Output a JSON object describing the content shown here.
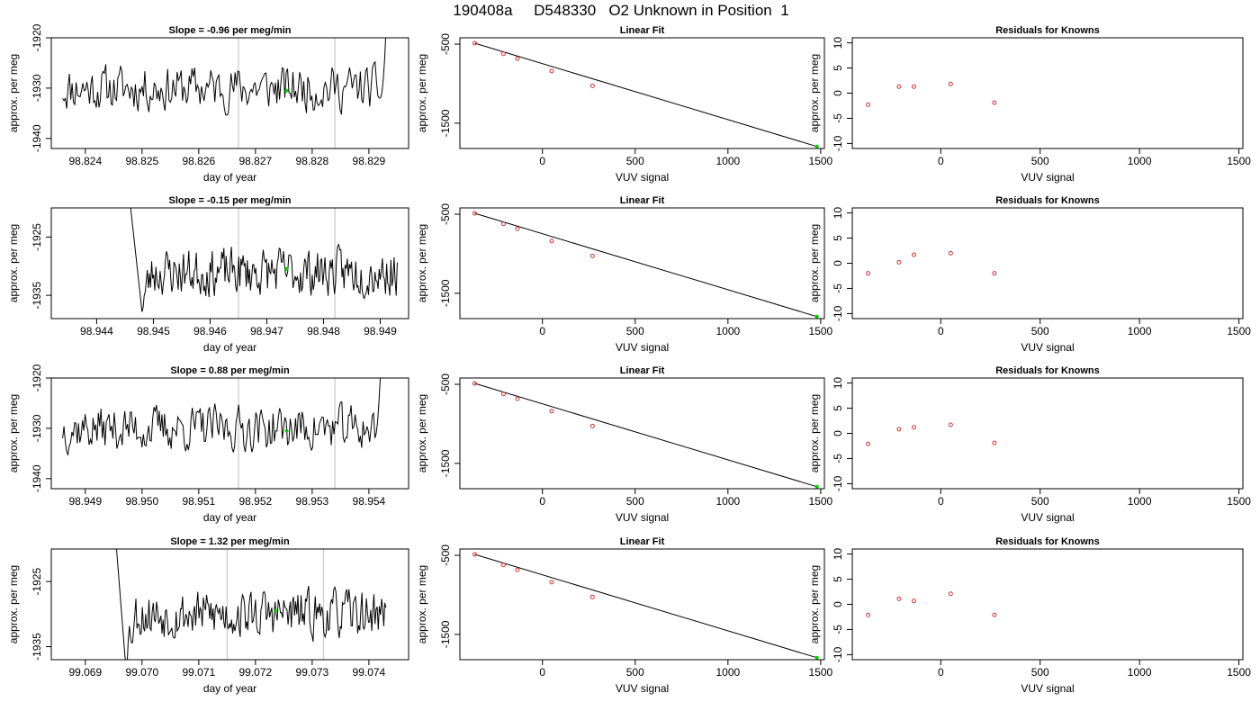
{
  "figure": {
    "title": "190408a     D548330   O2 Unknown in Position  1"
  },
  "rows": [
    {
      "timeseries": {
        "title": "Slope =  -0.96  per meg/min",
        "xlabel": "day of year",
        "ylabel": "approx. per meg",
        "xlim": [
          98.8234,
          98.8297
        ],
        "ylim": [
          -1942,
          -1920
        ],
        "xticks": [
          "98.824",
          "98.825",
          "98.826",
          "98.827",
          "98.828",
          "98.829"
        ],
        "xtick_values": [
          98.824,
          98.825,
          98.826,
          98.827,
          98.828,
          98.829
        ],
        "yticks": [
          "-1940",
          "-1930",
          "-1920"
        ],
        "ytick_values": [
          -1940,
          -1930,
          -1920
        ],
        "vlines": [
          98.8267,
          98.8284
        ],
        "marker": {
          "x": 98.82755,
          "y": -1930.5
        },
        "series": {
          "x_start": 98.8236,
          "x_end": 98.8293,
          "baseline": -1930,
          "spread": 2.2,
          "seed": 11,
          "head": null,
          "tail": {
            "from": 98.8292,
            "to": -1917
          }
        }
      },
      "linfit": {
        "title": "Linear Fit",
        "xlabel": "VUV signal",
        "ylabel": "approx. per meg",
        "xlim": [
          -445,
          1520
        ],
        "ylim": [
          -1820,
          -420
        ],
        "xticks": [
          "0",
          "500",
          "1000",
          "1500"
        ],
        "xtick_values": [
          0,
          500,
          1000,
          1500
        ],
        "yticks": [
          "-1500",
          "-500"
        ],
        "ytick_values": [
          -1500,
          -500
        ],
        "knowns": [
          {
            "x": -365,
            "y": -488
          },
          {
            "x": -210,
            "y": -622
          },
          {
            "x": -135,
            "y": -683
          },
          {
            "x": 50,
            "y": -840
          },
          {
            "x": 270,
            "y": -1027
          }
        ],
        "unknown": {
          "x": 1480,
          "y": -1795
        },
        "fit_line": {
          "x": [
            -365,
            1480
          ],
          "y": [
            -488,
            -1795
          ]
        }
      },
      "residuals": {
        "title": "Residuals for Knowns",
        "xlabel": "VUV signal",
        "ylabel": "approx. per meg",
        "xlim": [
          -445,
          1520
        ],
        "ylim": [
          -11,
          11
        ],
        "xticks": [
          "0",
          "500",
          "1000",
          "1500"
        ],
        "xtick_values": [
          0,
          500,
          1000,
          1500
        ],
        "yticks": [
          "-10",
          "-5",
          "0",
          "5",
          "10"
        ],
        "ytick_values": [
          -10,
          -5,
          0,
          5,
          10
        ],
        "points": [
          {
            "x": -365,
            "y": -2.3
          },
          {
            "x": -210,
            "y": 1.3
          },
          {
            "x": -135,
            "y": 1.3
          },
          {
            "x": 50,
            "y": 1.8
          },
          {
            "x": 270,
            "y": -1.9
          }
        ]
      }
    },
    {
      "timeseries": {
        "title": "Slope =  -0.15  per meg/min",
        "xlabel": "day of year",
        "ylabel": "approx. per meg",
        "xlim": [
          98.9432,
          98.9495
        ],
        "ylim": [
          -1939,
          -1920
        ],
        "xticks": [
          "98.944",
          "98.945",
          "98.946",
          "98.947",
          "98.948",
          "98.949"
        ],
        "xtick_values": [
          98.944,
          98.945,
          98.946,
          98.947,
          98.948,
          98.949
        ],
        "yticks": [
          "-1935",
          "-1925"
        ],
        "ytick_values": [
          -1935,
          -1925
        ],
        "vlines": [
          98.9465,
          98.9482
        ],
        "marker": {
          "x": 98.94735,
          "y": -1930.5
        },
        "series": {
          "x_start": 98.9448,
          "x_end": 98.9493,
          "baseline": -1931,
          "spread": 2.0,
          "seed": 23,
          "head": {
            "x": 98.9446,
            "y": -1920
          },
          "tail": null
        }
      },
      "linfit": {
        "title": "Linear Fit",
        "xlabel": "VUV signal",
        "ylabel": "approx. per meg",
        "xlim": [
          -445,
          1520
        ],
        "ylim": [
          -1820,
          -420
        ],
        "xticks": [
          "0",
          "500",
          "1000",
          "1500"
        ],
        "xtick_values": [
          0,
          500,
          1000,
          1500
        ],
        "yticks": [
          "-1500",
          "-500"
        ],
        "ytick_values": [
          -1500,
          -500
        ],
        "knowns": [
          {
            "x": -365,
            "y": -488
          },
          {
            "x": -210,
            "y": -622
          },
          {
            "x": -135,
            "y": -683
          },
          {
            "x": 50,
            "y": -840
          },
          {
            "x": 270,
            "y": -1027
          }
        ],
        "unknown": {
          "x": 1480,
          "y": -1795
        },
        "fit_line": {
          "x": [
            -365,
            1480
          ],
          "y": [
            -488,
            -1795
          ]
        }
      },
      "residuals": {
        "title": "Residuals for Knowns",
        "xlabel": "VUV signal",
        "ylabel": "approx. per meg",
        "xlim": [
          -445,
          1520
        ],
        "ylim": [
          -11,
          11
        ],
        "xticks": [
          "0",
          "500",
          "1000",
          "1500"
        ],
        "xtick_values": [
          0,
          500,
          1000,
          1500
        ],
        "yticks": [
          "-10",
          "-5",
          "0",
          "5",
          "10"
        ],
        "ytick_values": [
          -10,
          -5,
          0,
          5,
          10
        ],
        "points": [
          {
            "x": -365,
            "y": -2.0
          },
          {
            "x": -210,
            "y": 0.2
          },
          {
            "x": -135,
            "y": 1.7
          },
          {
            "x": 50,
            "y": 2.0
          },
          {
            "x": 270,
            "y": -2.0
          }
        ]
      }
    },
    {
      "timeseries": {
        "title": "Slope =  0.88  per meg/min",
        "xlabel": "day of year",
        "ylabel": "approx. per meg",
        "xlim": [
          98.9484,
          98.9547
        ],
        "ylim": [
          -1942,
          -1920
        ],
        "xticks": [
          "98.949",
          "98.950",
          "98.951",
          "98.952",
          "98.953",
          "98.954"
        ],
        "xtick_values": [
          98.949,
          98.95,
          98.951,
          98.952,
          98.953,
          98.954
        ],
        "yticks": [
          "-1940",
          "-1930",
          "-1920"
        ],
        "ytick_values": [
          -1940,
          -1930,
          -1920
        ],
        "vlines": [
          98.9517,
          98.9534
        ],
        "marker": {
          "x": 98.95255,
          "y": -1930.5
        },
        "series": {
          "x_start": 98.9486,
          "x_end": 98.9542,
          "baseline": -1930,
          "spread": 2.2,
          "seed": 37,
          "head": null,
          "tail": {
            "from": 98.9541,
            "to": -1918
          }
        }
      },
      "linfit": {
        "title": "Linear Fit",
        "xlabel": "VUV signal",
        "ylabel": "approx. per meg",
        "xlim": [
          -445,
          1520
        ],
        "ylim": [
          -1820,
          -420
        ],
        "xticks": [
          "0",
          "500",
          "1000",
          "1500"
        ],
        "xtick_values": [
          0,
          500,
          1000,
          1500
        ],
        "yticks": [
          "-1500",
          "-500"
        ],
        "ytick_values": [
          -1500,
          -500
        ],
        "knowns": [
          {
            "x": -365,
            "y": -488
          },
          {
            "x": -210,
            "y": -622
          },
          {
            "x": -135,
            "y": -683
          },
          {
            "x": 50,
            "y": -840
          },
          {
            "x": 270,
            "y": -1027
          }
        ],
        "unknown": {
          "x": 1480,
          "y": -1795
        },
        "fit_line": {
          "x": [
            -365,
            1480
          ],
          "y": [
            -488,
            -1795
          ]
        }
      },
      "residuals": {
        "title": "Residuals for Knowns",
        "xlabel": "VUV signal",
        "ylabel": "approx. per meg",
        "xlim": [
          -445,
          1520
        ],
        "ylim": [
          -11,
          11
        ],
        "xticks": [
          "0",
          "500",
          "1000",
          "1500"
        ],
        "xtick_values": [
          0,
          500,
          1000,
          1500
        ],
        "yticks": [
          "-10",
          "-5",
          "0",
          "5",
          "10"
        ],
        "ytick_values": [
          -10,
          -5,
          0,
          5,
          10
        ],
        "points": [
          {
            "x": -365,
            "y": -2.1
          },
          {
            "x": -210,
            "y": 0.8
          },
          {
            "x": -135,
            "y": 1.2
          },
          {
            "x": 50,
            "y": 1.7
          },
          {
            "x": 270,
            "y": -1.9
          }
        ]
      }
    },
    {
      "timeseries": {
        "title": "Slope =  1.32  per meg/min",
        "xlabel": "day of year",
        "ylabel": "approx. per meg",
        "xlim": [
          99.0684,
          99.0747
        ],
        "ylim": [
          -1937,
          -1920
        ],
        "xticks": [
          "99.069",
          "99.070",
          "99.071",
          "99.072",
          "99.073",
          "99.074"
        ],
        "xtick_values": [
          99.069,
          99.07,
          99.071,
          99.072,
          99.073,
          99.074
        ],
        "yticks": [
          "-1935",
          "-1925"
        ],
        "ytick_values": [
          -1935,
          -1925
        ],
        "vlines": [
          99.0715,
          99.0732
        ],
        "marker": {
          "x": 99.07235,
          "y": -1929.5
        },
        "series": {
          "x_start": 99.0697,
          "x_end": 99.0743,
          "baseline": -1930,
          "spread": 1.8,
          "seed": 53,
          "head": {
            "x": 99.06955,
            "y": -1920
          },
          "tail": null
        }
      },
      "linfit": {
        "title": "Linear Fit",
        "xlabel": "VUV signal",
        "ylabel": "approx. per meg",
        "xlim": [
          -445,
          1520
        ],
        "ylim": [
          -1820,
          -420
        ],
        "xticks": [
          "0",
          "500",
          "1000",
          "1500"
        ],
        "xtick_values": [
          0,
          500,
          1000,
          1500
        ],
        "yticks": [
          "-1500",
          "-500"
        ],
        "ytick_values": [
          -1500,
          -500
        ],
        "knowns": [
          {
            "x": -365,
            "y": -488
          },
          {
            "x": -210,
            "y": -622
          },
          {
            "x": -135,
            "y": -683
          },
          {
            "x": 50,
            "y": -840
          },
          {
            "x": 270,
            "y": -1027
          }
        ],
        "unknown": {
          "x": 1480,
          "y": -1795
        },
        "fit_line": {
          "x": [
            -365,
            1480
          ],
          "y": [
            -488,
            -1795
          ]
        }
      },
      "residuals": {
        "title": "Residuals for Knowns",
        "xlabel": "VUV signal",
        "ylabel": "approx. per meg",
        "xlim": [
          -445,
          1520
        ],
        "ylim": [
          -11,
          11
        ],
        "xticks": [
          "0",
          "500",
          "1000",
          "1500"
        ],
        "xtick_values": [
          0,
          500,
          1000,
          1500
        ],
        "yticks": [
          "-10",
          "-5",
          "0",
          "5",
          "10"
        ],
        "ytick_values": [
          -10,
          -5,
          0,
          5,
          10
        ],
        "points": [
          {
            "x": -365,
            "y": -2.1
          },
          {
            "x": -210,
            "y": 1.1
          },
          {
            "x": -135,
            "y": 0.7
          },
          {
            "x": 50,
            "y": 2.1
          },
          {
            "x": 270,
            "y": -2.1
          }
        ]
      }
    }
  ],
  "colors": {
    "line": "#000000",
    "vline": "#c8c8c8",
    "marker": "#00cc00",
    "known_point": "#cc3333",
    "axis": "#000000"
  },
  "chart_data": [
    {
      "type": "line",
      "title": "Slope =  -0.96  per meg/min",
      "xlabel": "day of year",
      "ylabel": "approx. per meg",
      "xlim": [
        98.8234,
        98.8297
      ],
      "ylim": [
        -1942,
        -1920
      ]
    },
    {
      "type": "scatter",
      "title": "Linear Fit",
      "xlabel": "VUV signal",
      "ylabel": "approx. per meg",
      "x": [
        -365,
        -210,
        -135,
        50,
        270,
        1480
      ],
      "y": [
        -488,
        -622,
        -683,
        -840,
        -1027,
        -1795
      ]
    },
    {
      "type": "scatter",
      "title": "Residuals for Knowns",
      "xlabel": "VUV signal",
      "ylabel": "approx. per meg",
      "x": [
        -365,
        -210,
        -135,
        50,
        270
      ],
      "y": [
        -2.3,
        1.3,
        1.3,
        1.8,
        -1.9
      ]
    },
    {
      "type": "line",
      "title": "Slope =  -0.15  per meg/min",
      "xlabel": "day of year",
      "ylabel": "approx. per meg",
      "xlim": [
        98.9432,
        98.9495
      ],
      "ylim": [
        -1939,
        -1920
      ]
    },
    {
      "type": "scatter",
      "title": "Linear Fit",
      "xlabel": "VUV signal",
      "ylabel": "approx. per meg",
      "x": [
        -365,
        -210,
        -135,
        50,
        270,
        1480
      ],
      "y": [
        -488,
        -622,
        -683,
        -840,
        -1027,
        -1795
      ]
    },
    {
      "type": "scatter",
      "title": "Residuals for Knowns",
      "xlabel": "VUV signal",
      "ylabel": "approx. per meg",
      "x": [
        -365,
        -210,
        -135,
        50,
        270
      ],
      "y": [
        -2.0,
        0.2,
        1.7,
        2.0,
        -2.0
      ]
    },
    {
      "type": "line",
      "title": "Slope =  0.88  per meg/min",
      "xlabel": "day of year",
      "ylabel": "approx. per meg",
      "xlim": [
        98.9484,
        98.9547
      ],
      "ylim": [
        -1942,
        -1920
      ]
    },
    {
      "type": "scatter",
      "title": "Linear Fit",
      "xlabel": "VUV signal",
      "ylabel": "approx. per meg",
      "x": [
        -365,
        -210,
        -135,
        50,
        270,
        1480
      ],
      "y": [
        -488,
        -622,
        -683,
        -840,
        -1027,
        -1795
      ]
    },
    {
      "type": "scatter",
      "title": "Residuals for Knowns",
      "xlabel": "VUV signal",
      "ylabel": "approx. per meg",
      "x": [
        -365,
        -210,
        -135,
        50,
        270
      ],
      "y": [
        -2.1,
        0.8,
        1.2,
        1.7,
        -1.9
      ]
    },
    {
      "type": "line",
      "title": "Slope =  1.32  per meg/min",
      "xlabel": "day of year",
      "ylabel": "approx. per meg",
      "xlim": [
        99.0684,
        99.0747
      ],
      "ylim": [
        -1937,
        -1920
      ]
    },
    {
      "type": "scatter",
      "title": "Linear Fit",
      "xlabel": "VUV signal",
      "ylabel": "approx. per meg",
      "x": [
        -365,
        -210,
        -135,
        50,
        270,
        1480
      ],
      "y": [
        -488,
        -622,
        -683,
        -840,
        -1027,
        -1795
      ]
    },
    {
      "type": "scatter",
      "title": "Residuals for Knowns",
      "xlabel": "VUV signal",
      "ylabel": "approx. per meg",
      "x": [
        -365,
        -210,
        -135,
        50,
        270
      ],
      "y": [
        -2.1,
        1.1,
        0.7,
        2.1,
        -2.1
      ]
    }
  ]
}
